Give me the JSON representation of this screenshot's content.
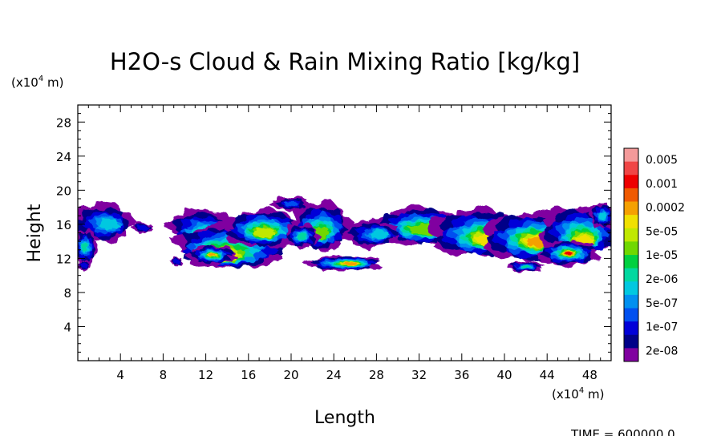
{
  "chart_data": {
    "type": "heatmap",
    "title": "H2O-s Cloud & Rain Mixing Ratio [kg/kg]",
    "xlabel": "Length",
    "ylabel": "Height",
    "x_unit": "(x10^4 m)",
    "y_unit": "(x10^4 m)",
    "unit_prefix": "(x10",
    "unit_exp": "4",
    "unit_suffix": " m)",
    "xlim": [
      0,
      50
    ],
    "ylim": [
      0,
      30
    ],
    "x_ticks": [
      4,
      8,
      12,
      16,
      20,
      24,
      28,
      32,
      36,
      40,
      44,
      48
    ],
    "y_ticks": [
      4,
      8,
      12,
      16,
      20,
      24,
      28
    ],
    "time_label": "TIME = 600000.0",
    "legend": {
      "labels": [
        "0.005",
        "0.001",
        "0.0002",
        "5e-05",
        "1e-05",
        "2e-06",
        "5e-07",
        "1e-07",
        "2e-08"
      ],
      "colors": [
        "#f49a9a",
        "#f04646",
        "#ee0000",
        "#f05a00",
        "#f5a000",
        "#f0e000",
        "#c0e800",
        "#70d800",
        "#00d040",
        "#00d8a0",
        "#00c8e0",
        "#0090f0",
        "#0050f0",
        "#0000d8",
        "#000088",
        "#8000a0"
      ]
    },
    "regions": [
      {
        "name": "left-edge-cloud",
        "x_range": [
          0,
          6.5
        ],
        "y_range": [
          11,
          18.5
        ],
        "max_level": 7
      },
      {
        "name": "central-cloud-system",
        "x_range": [
          8.5,
          30
        ],
        "y_range": [
          10.5,
          19
        ],
        "max_level": 13
      },
      {
        "name": "low-rain-layer",
        "x_range": [
          21.5,
          28.5
        ],
        "y_range": [
          10.5,
          12.5
        ],
        "max_level": 14
      },
      {
        "name": "right-cloud-system",
        "x_range": [
          24,
          50
        ],
        "y_range": [
          10.5,
          19
        ],
        "max_level": 13
      }
    ]
  }
}
